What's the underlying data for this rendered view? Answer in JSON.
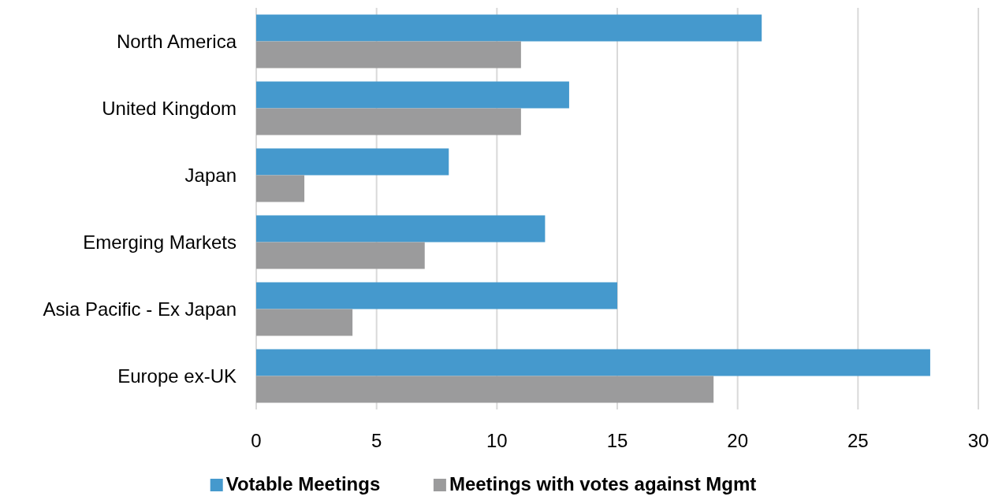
{
  "chart_data": {
    "type": "bar",
    "orientation": "horizontal",
    "categories": [
      "North America",
      "United Kingdom",
      "Japan",
      "Emerging Markets",
      "Asia Pacific - Ex Japan",
      "Europe ex-UK"
    ],
    "series": [
      {
        "name": "Votable Meetings",
        "color": "#4599cd",
        "values": [
          21,
          13,
          8,
          12,
          15,
          28
        ]
      },
      {
        "name": "Meetings with votes against Mgmt",
        "color": "#9b9b9c",
        "values": [
          11,
          11,
          2,
          7,
          4,
          19
        ]
      }
    ],
    "xlim": [
      0,
      30
    ],
    "xticks": [
      0,
      5,
      10,
      15,
      20,
      25,
      30
    ],
    "grid": "x",
    "legend": "bottom"
  }
}
